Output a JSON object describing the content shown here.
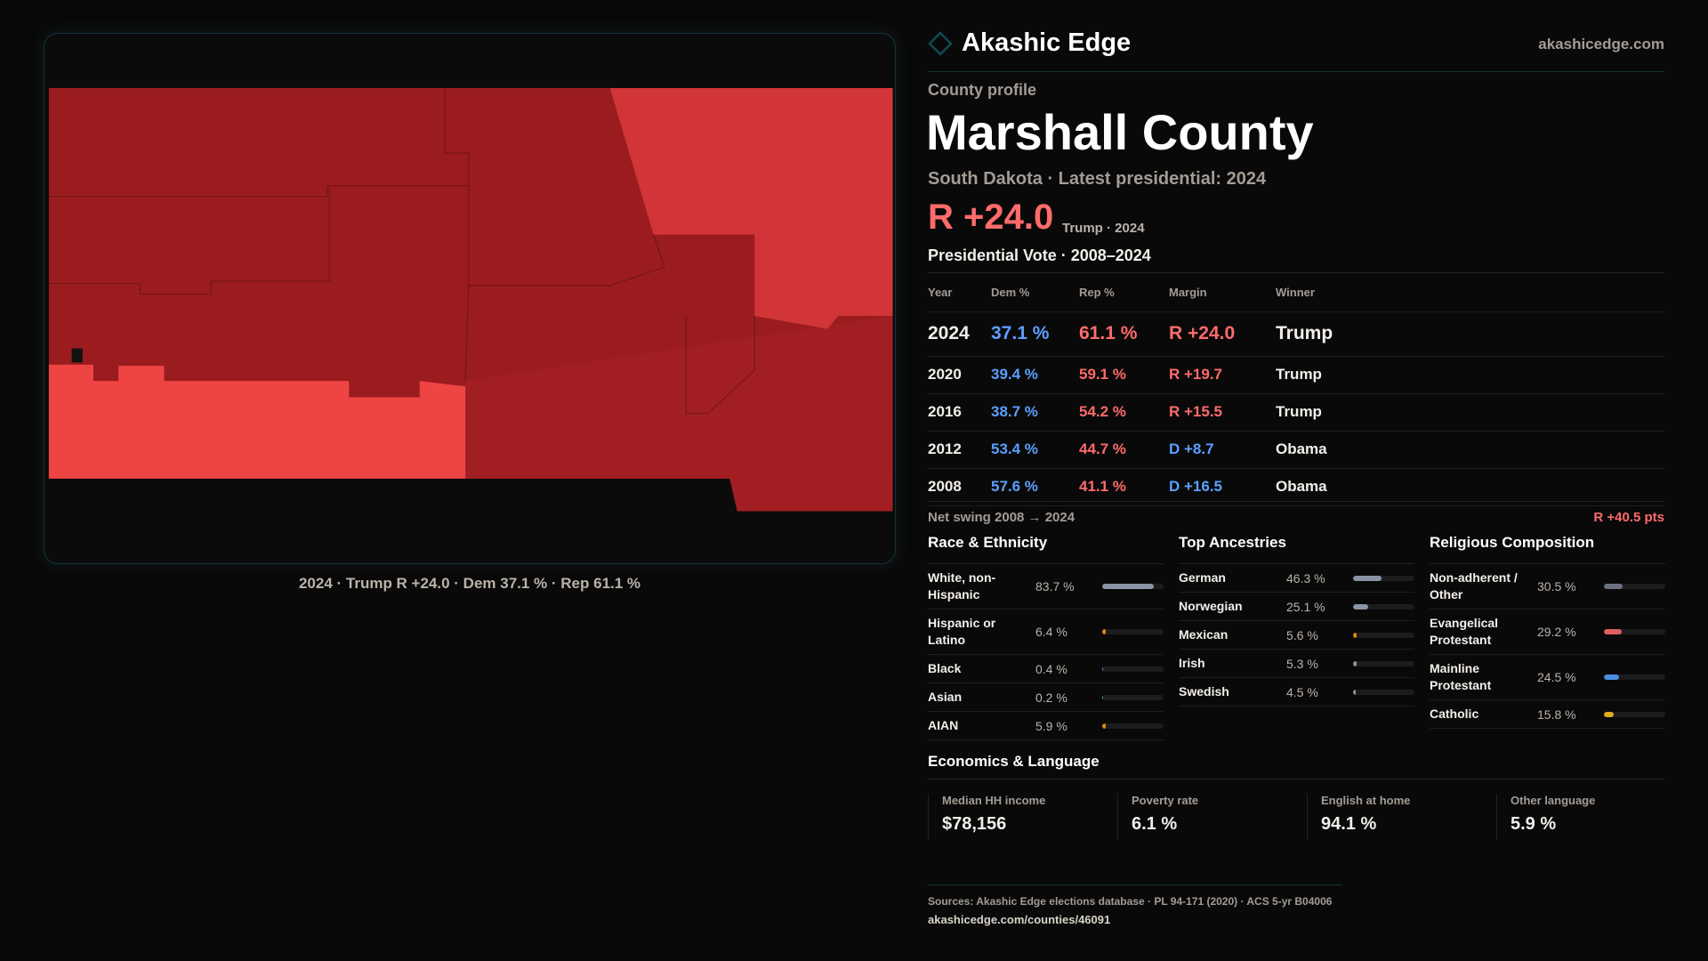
{
  "brand": {
    "name": "Akashic Edge",
    "site": "akashicedge.com"
  },
  "profile": {
    "kicker": "County profile",
    "title": "Marshall County",
    "subtitle": "South Dakota · Latest presidential: 2024",
    "margin": "R +24.0",
    "margin_note": "Trump · 2024"
  },
  "map": {
    "caption": "2024 · Trump R +24.0 · Dem 37.1 % · Rep 61.1 %"
  },
  "votes": {
    "title": "Presidential Vote · 2008–2024",
    "headers": [
      "Year",
      "Dem %",
      "Rep %",
      "Margin",
      "Winner"
    ],
    "rows": [
      {
        "year": "2024",
        "dem": "37.1 %",
        "rep": "61.1 %",
        "margin": "R +24.0",
        "party": "R",
        "winner": "Trump"
      },
      {
        "year": "2020",
        "dem": "39.4 %",
        "rep": "59.1 %",
        "margin": "R +19.7",
        "party": "R",
        "winner": "Trump"
      },
      {
        "year": "2016",
        "dem": "38.7 %",
        "rep": "54.2 %",
        "margin": "R +15.5",
        "party": "R",
        "winner": "Trump"
      },
      {
        "year": "2012",
        "dem": "53.4 %",
        "rep": "44.7 %",
        "margin": "D +8.7",
        "party": "D",
        "winner": "Obama"
      },
      {
        "year": "2008",
        "dem": "57.6 %",
        "rep": "41.1 %",
        "margin": "D +16.5",
        "party": "D",
        "winner": "Obama"
      }
    ],
    "swing_label": "Net swing 2008 → 2024",
    "swing_value": "R +40.5 pts"
  },
  "race": {
    "title": "Race & Ethnicity",
    "items": [
      {
        "label": "White, non-Hispanic",
        "value": "83.7 %",
        "pct": 83.7,
        "color": "#8a94a6"
      },
      {
        "label": "Hispanic or Latino",
        "value": "6.4 %",
        "pct": 6.4,
        "color": "#d98a0b"
      },
      {
        "label": "Black",
        "value": "0.4 %",
        "pct": 0.4,
        "color": "#8b7bd8"
      },
      {
        "label": "Asian",
        "value": "0.2 %",
        "pct": 0.2,
        "color": "#3aa0a0"
      },
      {
        "label": "AIAN",
        "value": "5.9 %",
        "pct": 5.9,
        "color": "#d98a0b"
      }
    ]
  },
  "ancestry": {
    "title": "Top Ancestries",
    "items": [
      {
        "label": "German",
        "value": "46.3 %",
        "pct": 46.3,
        "color": "#8a94a6"
      },
      {
        "label": "Norwegian",
        "value": "25.1 %",
        "pct": 25.1,
        "color": "#8a94a6"
      },
      {
        "label": "Mexican",
        "value": "5.6 %",
        "pct": 5.6,
        "color": "#d98a0b"
      },
      {
        "label": "Irish",
        "value": "5.3 %",
        "pct": 5.3,
        "color": "#8a94a6"
      },
      {
        "label": "Swedish",
        "value": "4.5 %",
        "pct": 4.5,
        "color": "#8a94a6"
      }
    ]
  },
  "religion": {
    "title": "Religious Composition",
    "items": [
      {
        "label": "Non-adherent / Other",
        "value": "30.5 %",
        "pct": 30.5,
        "color": "#6b7180"
      },
      {
        "label": "Evangelical Protestant",
        "value": "29.2 %",
        "pct": 29.2,
        "color": "#e06060"
      },
      {
        "label": "Mainline Protestant",
        "value": "24.5 %",
        "pct": 24.5,
        "color": "#4a8ee0"
      },
      {
        "label": "Catholic",
        "value": "15.8 %",
        "pct": 15.8,
        "color": "#e0aa20"
      }
    ]
  },
  "econ": {
    "title": "Economics & Language",
    "stats": [
      {
        "label": "Median HH income",
        "value": "$78,156"
      },
      {
        "label": "Poverty rate",
        "value": "6.1 %"
      },
      {
        "label": "English at home",
        "value": "94.1 %"
      },
      {
        "label": "Other language",
        "value": "5.9 %"
      }
    ]
  },
  "footer": {
    "sources": "Sources: Akashic Edge elections database · PL 94-171 (2020) · ACS 5-yr B04006",
    "url": "akashicedge.com/counties/46091"
  },
  "colors": {
    "dem": "#5aa0ff",
    "rep": "#ff6b6b",
    "accent": "#14a3b0"
  }
}
